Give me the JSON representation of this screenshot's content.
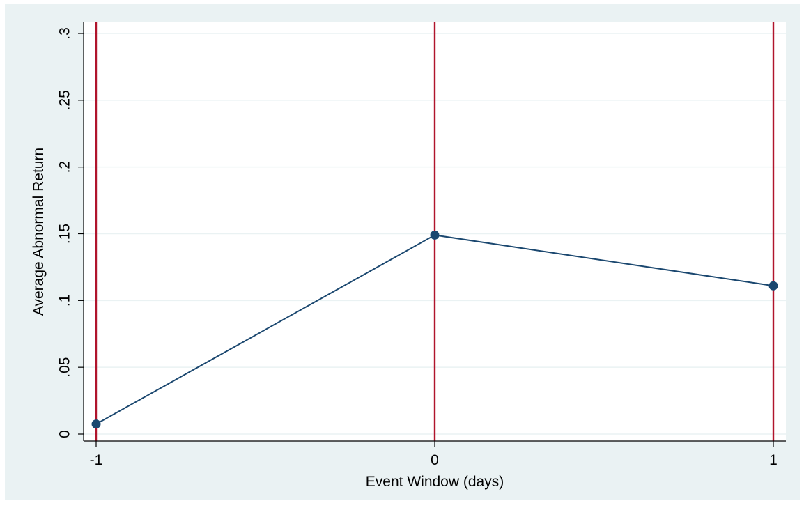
{
  "chart_data": {
    "type": "line",
    "xlabel": "Event Window (days)",
    "ylabel": "Average Abnormal Return",
    "x": [
      -1,
      0,
      1
    ],
    "series": [
      {
        "values": [
          0.0075,
          0.149,
          0.111
        ]
      }
    ],
    "xlim": [
      -1,
      1
    ],
    "ylim": [
      0,
      0.3
    ],
    "x_ticks": [
      -1,
      0,
      1
    ],
    "x_tick_labels": [
      "-1",
      "0",
      "1"
    ],
    "y_ticks": [
      0,
      0.05,
      0.1,
      0.15,
      0.2,
      0.25,
      0.3
    ],
    "y_tick_labels": [
      "0",
      ".05",
      ".1",
      ".15",
      ".2",
      ".25",
      ".3"
    ],
    "reference_lines_x": [
      -1,
      0,
      1
    ],
    "grid": true,
    "colors": {
      "background": "#eaf2f3",
      "plot_area": "#ffffff",
      "gridline": "#eaf2f3",
      "series_line": "#1a476f",
      "marker": "#1a476f",
      "reference_line": "#b0142c"
    }
  }
}
